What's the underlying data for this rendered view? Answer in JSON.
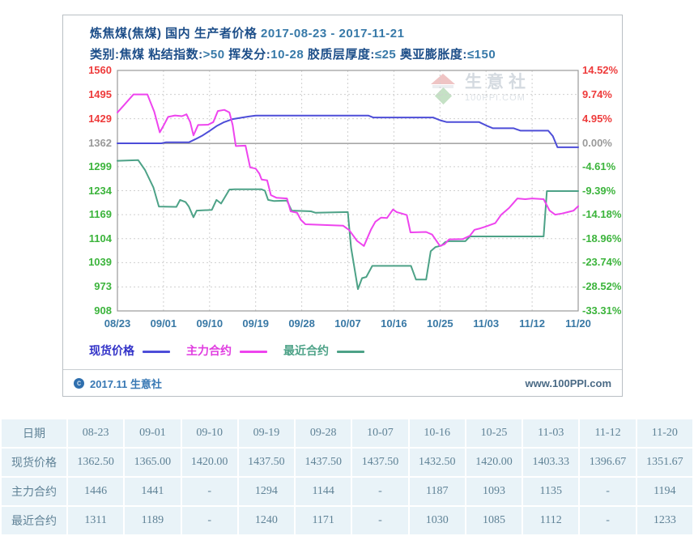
{
  "chart": {
    "title_main": "炼焦煤(焦煤) 国内 生产者价格",
    "title_dates": "2017-08-23 - 2017-11-21",
    "subtitle_segments": [
      {
        "text": "类别:焦煤 粘结指数:",
        "tone": "navy"
      },
      {
        "text": ">50",
        "tone": "teal"
      },
      {
        "text": " 挥发分:",
        "tone": "navy"
      },
      {
        "text": "10-28",
        "tone": "teal"
      },
      {
        "text": " 胶质层厚度:",
        "tone": "navy"
      },
      {
        "text": "≤25",
        "tone": "teal"
      },
      {
        "text": " 奥亚膨胀度:",
        "tone": "navy"
      },
      {
        "text": "≤150",
        "tone": "teal"
      }
    ],
    "watermark": {
      "name": "生意社",
      "domain": "100PPI.COM"
    },
    "footer": {
      "copyright_symbol": "c",
      "copyright": "2017.11 生意社",
      "site": "www.100PPI.com"
    },
    "legend": [
      {
        "label": "现货价格",
        "text_color": "#3333c8",
        "line_color": "#4d4dd8"
      },
      {
        "label": "主力合约",
        "text_color": "#e03ce0",
        "line_color": "#ee44ee"
      },
      {
        "label": "最近合约",
        "text_color": "#4da287",
        "line_color": "#4da287"
      }
    ]
  },
  "chart_data": {
    "type": "line",
    "title": "炼焦煤(焦煤) 国内 生产者价格 2017-08-23 - 2017-11-21",
    "x_labels": [
      "08/23",
      "09/01",
      "09/10",
      "09/19",
      "09/28",
      "10/07",
      "10/16",
      "10/25",
      "11/03",
      "11/12",
      "11/20"
    ],
    "ylim": [
      908,
      1560
    ],
    "grid": true,
    "legend_position": "bottom",
    "y_axis_left_ticks": [
      {
        "value": 1560,
        "label": "1560",
        "color": "#ee3b3b"
      },
      {
        "value": 1495,
        "label": "1495",
        "color": "#ee3b3b"
      },
      {
        "value": 1429,
        "label": "1429",
        "color": "#ee3b3b"
      },
      {
        "value": 1362,
        "label": "1362",
        "color": "#9a9a9a"
      },
      {
        "value": 1299,
        "label": "1299",
        "color": "#3cb43c"
      },
      {
        "value": 1234,
        "label": "1234",
        "color": "#3cb43c"
      },
      {
        "value": 1169,
        "label": "1169",
        "color": "#3cb43c"
      },
      {
        "value": 1104,
        "label": "1104",
        "color": "#3cb43c"
      },
      {
        "value": 1039,
        "label": "1039",
        "color": "#3cb43c"
      },
      {
        "value": 973,
        "label": "973",
        "color": "#3cb43c"
      },
      {
        "value": 908,
        "label": "908",
        "color": "#3cb43c"
      }
    ],
    "y_axis_right_ticks": [
      {
        "label": "14.52%",
        "color": "#ee3b3b"
      },
      {
        "label": "9.74%",
        "color": "#ee3b3b"
      },
      {
        "label": "4.95%",
        "color": "#ee3b3b"
      },
      {
        "label": "0.00%",
        "color": "#9a9a9a"
      },
      {
        "label": "-4.61%",
        "color": "#3cb43c"
      },
      {
        "label": "-9.39%",
        "color": "#3cb43c"
      },
      {
        "label": "-14.18%",
        "color": "#3cb43c"
      },
      {
        "label": "-18.96%",
        "color": "#3cb43c"
      },
      {
        "label": "-23.74%",
        "color": "#3cb43c"
      },
      {
        "label": "-28.52%",
        "color": "#3cb43c"
      },
      {
        "label": "-33.31%",
        "color": "#3cb43c"
      }
    ],
    "zero_line_value": 1362,
    "series": [
      {
        "name": "现货价格",
        "color": "#4d4dd8",
        "values": [
          1362.5,
          1365.0,
          1420.0,
          1437.5,
          1437.5,
          1437.5,
          1432.5,
          1420.0,
          1403.33,
          1396.67,
          1351.67
        ],
        "path": [
          [
            0,
            1362.5
          ],
          [
            0.095,
            1362.5
          ],
          [
            0.105,
            1365
          ],
          [
            0.155,
            1365
          ],
          [
            0.17,
            1374
          ],
          [
            0.185,
            1384
          ],
          [
            0.2,
            1396
          ],
          [
            0.215,
            1409
          ],
          [
            0.23,
            1419
          ],
          [
            0.25,
            1428
          ],
          [
            0.27,
            1432
          ],
          [
            0.285,
            1435
          ],
          [
            0.3,
            1437.5
          ],
          [
            0.545,
            1437.5
          ],
          [
            0.555,
            1432.5
          ],
          [
            0.685,
            1432.5
          ],
          [
            0.7,
            1425
          ],
          [
            0.715,
            1420
          ],
          [
            0.785,
            1420
          ],
          [
            0.8,
            1411
          ],
          [
            0.815,
            1403.3
          ],
          [
            0.86,
            1403.3
          ],
          [
            0.875,
            1396.7
          ],
          [
            0.935,
            1396.7
          ],
          [
            0.945,
            1382
          ],
          [
            0.955,
            1351.7
          ],
          [
            1,
            1351.7
          ]
        ]
      },
      {
        "name": "主力合约",
        "color": "#ee44ee",
        "values": [
          1446,
          1441,
          null,
          1294,
          1144,
          null,
          1187,
          1093,
          1135,
          null,
          1194
        ],
        "path": [
          [
            0,
            1446
          ],
          [
            0.015,
            1467
          ],
          [
            0.035,
            1495
          ],
          [
            0.065,
            1495
          ],
          [
            0.08,
            1448
          ],
          [
            0.092,
            1392
          ],
          [
            0.1,
            1410
          ],
          [
            0.11,
            1434
          ],
          [
            0.125,
            1438
          ],
          [
            0.14,
            1436
          ],
          [
            0.15,
            1441
          ],
          [
            0.158,
            1420
          ],
          [
            0.165,
            1384
          ],
          [
            0.175,
            1412
          ],
          [
            0.197,
            1413
          ],
          [
            0.208,
            1420
          ],
          [
            0.218,
            1450
          ],
          [
            0.232,
            1453
          ],
          [
            0.243,
            1446
          ],
          [
            0.25,
            1412
          ],
          [
            0.257,
            1355
          ],
          [
            0.278,
            1356
          ],
          [
            0.288,
            1297
          ],
          [
            0.3,
            1294
          ],
          [
            0.308,
            1280
          ],
          [
            0.313,
            1264
          ],
          [
            0.325,
            1262
          ],
          [
            0.333,
            1222
          ],
          [
            0.345,
            1215
          ],
          [
            0.368,
            1213
          ],
          [
            0.376,
            1178
          ],
          [
            0.39,
            1174
          ],
          [
            0.398,
            1155
          ],
          [
            0.408,
            1143
          ],
          [
            0.49,
            1139
          ],
          [
            0.503,
            1127
          ],
          [
            0.52,
            1098
          ],
          [
            0.535,
            1084
          ],
          [
            0.55,
            1128
          ],
          [
            0.56,
            1150
          ],
          [
            0.572,
            1161
          ],
          [
            0.585,
            1160
          ],
          [
            0.598,
            1183
          ],
          [
            0.606,
            1176
          ],
          [
            0.617,
            1172
          ],
          [
            0.628,
            1168
          ],
          [
            0.636,
            1121
          ],
          [
            0.67,
            1122
          ],
          [
            0.683,
            1115
          ],
          [
            0.7,
            1084
          ],
          [
            0.71,
            1089
          ],
          [
            0.72,
            1102
          ],
          [
            0.75,
            1103
          ],
          [
            0.765,
            1112
          ],
          [
            0.775,
            1128
          ],
          [
            0.785,
            1131
          ],
          [
            0.798,
            1136
          ],
          [
            0.82,
            1146
          ],
          [
            0.833,
            1169
          ],
          [
            0.85,
            1187
          ],
          [
            0.868,
            1213
          ],
          [
            0.885,
            1211
          ],
          [
            0.9,
            1213
          ],
          [
            0.925,
            1211
          ],
          [
            0.938,
            1180
          ],
          [
            0.95,
            1169
          ],
          [
            0.965,
            1172
          ],
          [
            0.978,
            1176
          ],
          [
            0.99,
            1180
          ],
          [
            1,
            1192
          ]
        ]
      },
      {
        "name": "最近合约",
        "color": "#4da287",
        "values": [
          1311,
          1189,
          null,
          1240,
          1171,
          null,
          1030,
          1085,
          1112,
          null,
          1233
        ],
        "path": [
          [
            0,
            1315
          ],
          [
            0.045,
            1317
          ],
          [
            0.06,
            1290
          ],
          [
            0.078,
            1243
          ],
          [
            0.09,
            1191
          ],
          [
            0.128,
            1190
          ],
          [
            0.136,
            1209
          ],
          [
            0.148,
            1203
          ],
          [
            0.155,
            1191
          ],
          [
            0.165,
            1162
          ],
          [
            0.172,
            1180
          ],
          [
            0.205,
            1182
          ],
          [
            0.215,
            1209
          ],
          [
            0.225,
            1199
          ],
          [
            0.243,
            1237
          ],
          [
            0.255,
            1238
          ],
          [
            0.312,
            1238
          ],
          [
            0.32,
            1234
          ],
          [
            0.327,
            1209
          ],
          [
            0.34,
            1206
          ],
          [
            0.368,
            1207
          ],
          [
            0.378,
            1180
          ],
          [
            0.42,
            1178
          ],
          [
            0.43,
            1174
          ],
          [
            0.5,
            1176
          ],
          [
            0.507,
            1080
          ],
          [
            0.522,
            967
          ],
          [
            0.531,
            997
          ],
          [
            0.54,
            1000
          ],
          [
            0.553,
            1030
          ],
          [
            0.637,
            1030
          ],
          [
            0.648,
            993
          ],
          [
            0.67,
            993
          ],
          [
            0.68,
            1070
          ],
          [
            0.69,
            1081
          ],
          [
            0.703,
            1085
          ],
          [
            0.712,
            1095
          ],
          [
            0.72,
            1097
          ],
          [
            0.755,
            1097
          ],
          [
            0.765,
            1110
          ],
          [
            0.925,
            1110
          ],
          [
            0.932,
            1233
          ],
          [
            1,
            1233
          ]
        ]
      }
    ]
  },
  "table": {
    "header": [
      "日期",
      "08-23",
      "09-01",
      "09-10",
      "09-19",
      "09-28",
      "10-07",
      "10-16",
      "10-25",
      "11-03",
      "11-12",
      "11-20"
    ],
    "rows": [
      {
        "label": "现货价格",
        "values": [
          "1362.50",
          "1365.00",
          "1420.00",
          "1437.50",
          "1437.50",
          "1437.50",
          "1432.50",
          "1420.00",
          "1403.33",
          "1396.67",
          "1351.67"
        ]
      },
      {
        "label": "主力合约",
        "values": [
          "1446",
          "1441",
          "-",
          "1294",
          "1144",
          "-",
          "1187",
          "1093",
          "1135",
          "-",
          "1194"
        ]
      },
      {
        "label": "最近合约",
        "values": [
          "1311",
          "1189",
          "-",
          "1240",
          "1171",
          "-",
          "1030",
          "1085",
          "1112",
          "-",
          "1233"
        ]
      }
    ]
  }
}
